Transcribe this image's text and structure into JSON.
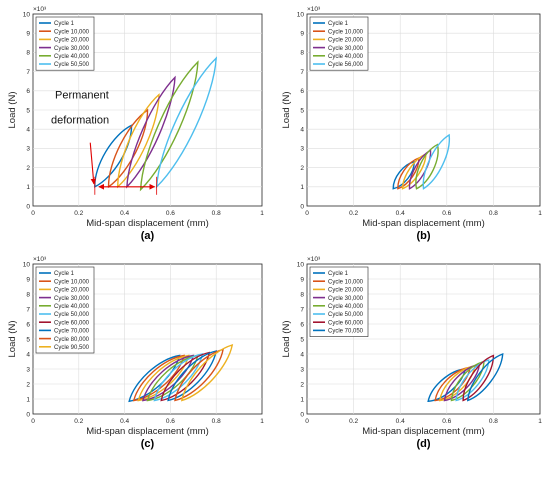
{
  "chart_data": [
    {
      "type": "line",
      "panel_label": "(a)",
      "xlabel": "Mid-span displacement (mm)",
      "ylabel": "Load (N)",
      "y_exponent": "×10³",
      "xlim": [
        0,
        1
      ],
      "ylim": [
        0,
        10
      ],
      "x_ticks": [
        "0",
        "0.2",
        "0.4",
        "0.6",
        "0.8",
        "1"
      ],
      "y_ticks": [
        "0",
        "1",
        "2",
        "3",
        "4",
        "5",
        "6",
        "7",
        "8",
        "9",
        "10"
      ],
      "grid": true,
      "legend_position": "top-left",
      "annotations": [
        "Permanent",
        "deformation"
      ],
      "series": [
        {
          "name": "Cycle 1",
          "color": "#0072BD",
          "min": [
            0.27,
            1.0
          ],
          "max": [
            0.43,
            4.2
          ],
          "w": 0.05
        },
        {
          "name": "Cycle 10,000",
          "color": "#D95319",
          "min": [
            0.33,
            1.0
          ],
          "max": [
            0.5,
            5.0
          ],
          "w": 0.05
        },
        {
          "name": "Cycle 20,000",
          "color": "#EDB120",
          "min": [
            0.37,
            1.0
          ],
          "max": [
            0.55,
            5.8
          ],
          "w": 0.05
        },
        {
          "name": "Cycle 30,000",
          "color": "#7E2F8E",
          "min": [
            0.41,
            1.0
          ],
          "max": [
            0.62,
            6.7
          ],
          "w": 0.05
        },
        {
          "name": "Cycle 40,000",
          "color": "#77AC30",
          "min": [
            0.47,
            0.85
          ],
          "max": [
            0.72,
            7.5
          ],
          "w": 0.06
        },
        {
          "name": "Cycle 50,500",
          "color": "#4DBEEE",
          "min": [
            0.54,
            1.0
          ],
          "max": [
            0.8,
            7.7
          ],
          "w": 0.06
        }
      ]
    },
    {
      "type": "line",
      "panel_label": "(b)",
      "xlabel": "Mid-span displacement (mm)",
      "ylabel": "Load (N)",
      "y_exponent": "×10³",
      "xlim": [
        0,
        1
      ],
      "ylim": [
        0,
        10
      ],
      "x_ticks": [
        "0",
        "0.2",
        "0.4",
        "0.6",
        "0.8",
        "1"
      ],
      "y_ticks": [
        "0",
        "1",
        "2",
        "3",
        "4",
        "5",
        "6",
        "7",
        "8",
        "9",
        "10"
      ],
      "grid": true,
      "legend_position": "top-left",
      "series": [
        {
          "name": "Cycle 1",
          "color": "#0072BD",
          "min": [
            0.37,
            0.9
          ],
          "max": [
            0.46,
            2.3
          ],
          "w": 0.03
        },
        {
          "name": "Cycle 10,000",
          "color": "#D95319",
          "min": [
            0.39,
            0.9
          ],
          "max": [
            0.48,
            2.5
          ],
          "w": 0.03
        },
        {
          "name": "Cycle 20,000",
          "color": "#EDB120",
          "min": [
            0.41,
            0.9
          ],
          "max": [
            0.51,
            2.7
          ],
          "w": 0.03
        },
        {
          "name": "Cycle 30,000",
          "color": "#7E2F8E",
          "min": [
            0.44,
            0.9
          ],
          "max": [
            0.53,
            2.9
          ],
          "w": 0.03
        },
        {
          "name": "Cycle 40,000",
          "color": "#77AC30",
          "min": [
            0.47,
            0.9
          ],
          "max": [
            0.56,
            3.2
          ],
          "w": 0.04
        },
        {
          "name": "Cycle 56,000",
          "color": "#4DBEEE",
          "min": [
            0.5,
            0.9
          ],
          "max": [
            0.61,
            3.7
          ],
          "w": 0.04
        }
      ]
    },
    {
      "type": "line",
      "panel_label": "(c)",
      "xlabel": "Mid-span displacement (mm)",
      "ylabel": "Load (N)",
      "y_exponent": "×10³",
      "xlim": [
        0,
        1
      ],
      "ylim": [
        0,
        10
      ],
      "x_ticks": [
        "0",
        "0.2",
        "0.4",
        "0.6",
        "0.8",
        "1"
      ],
      "y_ticks": [
        "0",
        "1",
        "2",
        "3",
        "4",
        "5",
        "6",
        "7",
        "8",
        "9",
        "10"
      ],
      "grid": true,
      "legend_position": "top-left",
      "series": [
        {
          "name": "Cycle 1",
          "color": "#0072BD",
          "min": [
            0.42,
            0.85
          ],
          "max": [
            0.64,
            3.9
          ],
          "w": 0.05
        },
        {
          "name": "Cycle 10,000",
          "color": "#D95319",
          "min": [
            0.44,
            0.9
          ],
          "max": [
            0.66,
            3.9
          ],
          "w": 0.05
        },
        {
          "name": "Cycle 20,000",
          "color": "#EDB120",
          "min": [
            0.46,
            0.9
          ],
          "max": [
            0.68,
            3.9
          ],
          "w": 0.05
        },
        {
          "name": "Cycle 30,000",
          "color": "#7E2F8E",
          "min": [
            0.48,
            0.9
          ],
          "max": [
            0.7,
            3.9
          ],
          "w": 0.05
        },
        {
          "name": "Cycle 40,000",
          "color": "#77AC30",
          "min": [
            0.5,
            0.9
          ],
          "max": [
            0.72,
            3.9
          ],
          "w": 0.05
        },
        {
          "name": "Cycle 50,000",
          "color": "#4DBEEE",
          "min": [
            0.53,
            0.9
          ],
          "max": [
            0.74,
            4.0
          ],
          "w": 0.05
        },
        {
          "name": "Cycle 60,000",
          "color": "#A2142F",
          "min": [
            0.56,
            0.9
          ],
          "max": [
            0.77,
            4.1
          ],
          "w": 0.05
        },
        {
          "name": "Cycle 70,000",
          "color": "#0072BD",
          "min": [
            0.59,
            0.9
          ],
          "max": [
            0.8,
            4.2
          ],
          "w": 0.05
        },
        {
          "name": "Cycle 80,000",
          "color": "#D95319",
          "min": [
            0.62,
            0.9
          ],
          "max": [
            0.83,
            4.3
          ],
          "w": 0.05
        },
        {
          "name": "Cycle 90,500",
          "color": "#EDB120",
          "min": [
            0.65,
            0.9
          ],
          "max": [
            0.87,
            4.6
          ],
          "w": 0.05
        }
      ]
    },
    {
      "type": "line",
      "panel_label": "(d)",
      "xlabel": "Mid-span displacement (mm)",
      "ylabel": "Load (N)",
      "y_exponent": "×10³",
      "xlim": [
        0,
        1
      ],
      "ylim": [
        0,
        10
      ],
      "x_ticks": [
        "0",
        "0.2",
        "0.4",
        "0.6",
        "0.8",
        "1"
      ],
      "y_ticks": [
        "0",
        "1",
        "2",
        "3",
        "4",
        "5",
        "6",
        "7",
        "8",
        "9",
        "10"
      ],
      "grid": true,
      "legend_position": "top-left",
      "series": [
        {
          "name": "Cycle 1",
          "color": "#0072BD",
          "min": [
            0.52,
            0.85
          ],
          "max": [
            0.68,
            3.0
          ],
          "w": 0.04
        },
        {
          "name": "Cycle 10,000",
          "color": "#D95319",
          "min": [
            0.55,
            0.9
          ],
          "max": [
            0.7,
            3.1
          ],
          "w": 0.04
        },
        {
          "name": "Cycle 20,000",
          "color": "#EDB120",
          "min": [
            0.57,
            0.9
          ],
          "max": [
            0.72,
            3.2
          ],
          "w": 0.04
        },
        {
          "name": "Cycle 30,000",
          "color": "#7E2F8E",
          "min": [
            0.59,
            0.9
          ],
          "max": [
            0.74,
            3.3
          ],
          "w": 0.04
        },
        {
          "name": "Cycle 40,000",
          "color": "#77AC30",
          "min": [
            0.62,
            0.9
          ],
          "max": [
            0.76,
            3.5
          ],
          "w": 0.04
        },
        {
          "name": "Cycle 50,000",
          "color": "#4DBEEE",
          "min": [
            0.64,
            0.9
          ],
          "max": [
            0.78,
            3.6
          ],
          "w": 0.04
        },
        {
          "name": "Cycle 60,000",
          "color": "#A2142F",
          "min": [
            0.67,
            0.9
          ],
          "max": [
            0.8,
            3.9
          ],
          "w": 0.04
        },
        {
          "name": "Cycle 70,050",
          "color": "#0072BD",
          "min": [
            0.69,
            0.9
          ],
          "max": [
            0.84,
            4.0
          ],
          "w": 0.04
        }
      ]
    }
  ]
}
